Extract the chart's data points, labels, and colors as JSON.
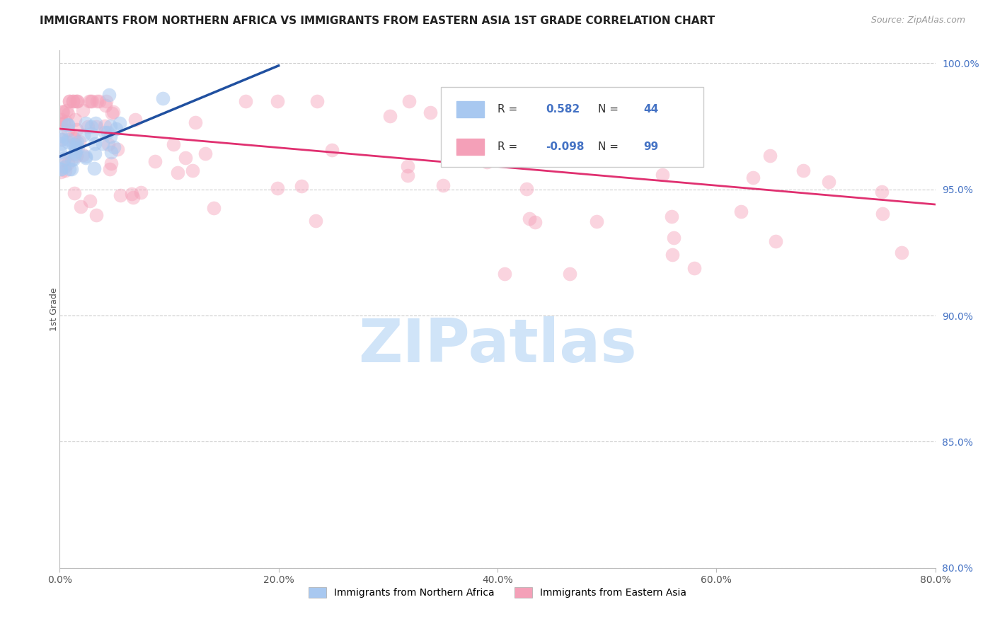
{
  "title": "IMMIGRANTS FROM NORTHERN AFRICA VS IMMIGRANTS FROM EASTERN ASIA 1ST GRADE CORRELATION CHART",
  "source": "Source: ZipAtlas.com",
  "xlabel_blue": "Immigrants from Northern Africa",
  "xlabel_pink": "Immigrants from Eastern Asia",
  "ylabel": "1st Grade",
  "xlim": [
    0.0,
    0.8
  ],
  "ylim": [
    0.8,
    1.005
  ],
  "yticks": [
    0.8,
    0.85,
    0.9,
    0.95,
    1.0
  ],
  "ytick_labels": [
    "80.0%",
    "85.0%",
    "90.0%",
    "95.0%",
    "100.0%"
  ],
  "xticks": [
    0.0,
    0.2,
    0.4,
    0.6,
    0.8
  ],
  "xtick_labels": [
    "0.0%",
    "20.0%",
    "40.0%",
    "60.0%",
    "80.0%"
  ],
  "r_blue": 0.582,
  "n_blue": 44,
  "r_pink": -0.098,
  "n_pink": 99,
  "blue_color": "#A8C8F0",
  "pink_color": "#F4A0B8",
  "blue_line_color": "#2050A0",
  "pink_line_color": "#E03070",
  "watermark_color": "#D0E4F8",
  "background_color": "#ffffff",
  "grid_color": "#cccccc",
  "blue_trend_x0": 0.0,
  "blue_trend_y0": 0.963,
  "blue_trend_x1": 0.2,
  "blue_trend_y1": 0.999,
  "pink_trend_x0": 0.0,
  "pink_trend_y0": 0.974,
  "pink_trend_x1": 0.8,
  "pink_trend_y1": 0.944
}
